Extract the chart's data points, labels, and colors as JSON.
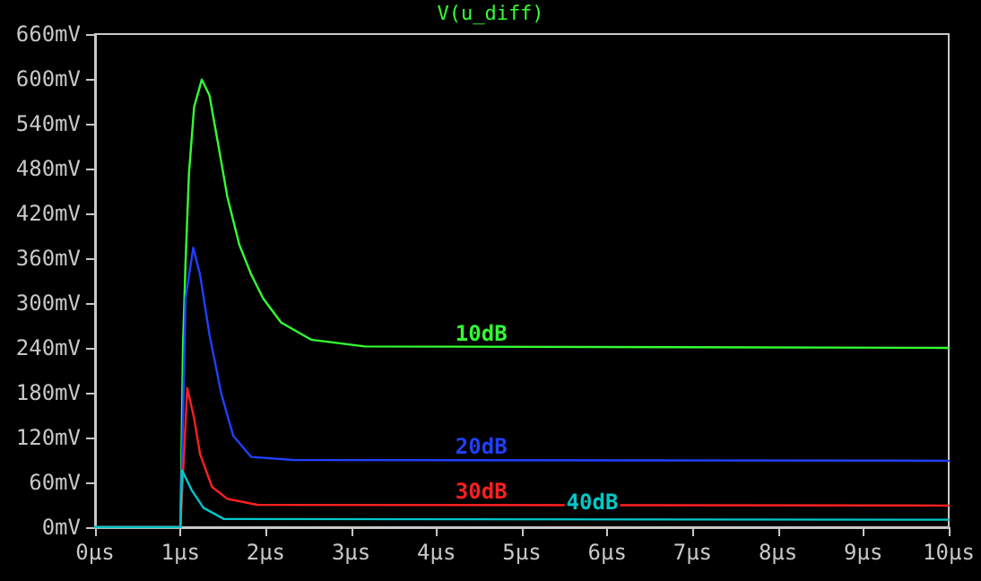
{
  "chart_data": {
    "type": "line",
    "title": "V(u_diff)",
    "marker": "none",
    "grid": false,
    "legend": false,
    "xlim": [
      0,
      10
    ],
    "xticks": [
      {
        "value": 0,
        "label": "0µs"
      },
      {
        "value": 1,
        "label": "1µs"
      },
      {
        "value": 2,
        "label": "2µs"
      },
      {
        "value": 3,
        "label": "3µs"
      },
      {
        "value": 4,
        "label": "4µs"
      },
      {
        "value": 5,
        "label": "5µs"
      },
      {
        "value": 6,
        "label": "6µs"
      },
      {
        "value": 7,
        "label": "7µs"
      },
      {
        "value": 8,
        "label": "8µs"
      },
      {
        "value": 9,
        "label": "9µs"
      },
      {
        "value": 10,
        "label": "10µs"
      }
    ],
    "ylim": [
      0,
      660
    ],
    "yticks": [
      {
        "value": 0,
        "label": "0mV"
      },
      {
        "value": 60,
        "label": "60mV"
      },
      {
        "value": 120,
        "label": "120mV"
      },
      {
        "value": 180,
        "label": "180mV"
      },
      {
        "value": 240,
        "label": "240mV"
      },
      {
        "value": 300,
        "label": "300mV"
      },
      {
        "value": 360,
        "label": "360mV"
      },
      {
        "value": 420,
        "label": "420mV"
      },
      {
        "value": 480,
        "label": "480mV"
      },
      {
        "value": 540,
        "label": "540mV"
      },
      {
        "value": 600,
        "label": "600mV"
      },
      {
        "value": 660,
        "label": "660mV"
      }
    ],
    "series": [
      {
        "name": "10dB",
        "color": "#33ff33",
        "x": [
          0,
          1,
          1.03,
          1.06,
          1.1,
          1.16,
          1.25,
          1.34,
          1.44,
          1.55,
          1.69,
          1.83,
          1.97,
          2.18,
          2.53,
          3.16,
          10
        ],
        "values": [
          0,
          0,
          242,
          354,
          473,
          562,
          599,
          578,
          514,
          442,
          378,
          338,
          306,
          274,
          251,
          242,
          240
        ]
      },
      {
        "name": "20dB",
        "color": "#2040ff",
        "x": [
          0,
          1,
          1.03,
          1.06,
          1.15,
          1.23,
          1.34,
          1.48,
          1.62,
          1.83,
          2.32,
          10
        ],
        "values": [
          0,
          0,
          146,
          306,
          374,
          338,
          258,
          178,
          122,
          94,
          90,
          89
        ]
      },
      {
        "name": "30dB",
        "color": "#ff2020",
        "x": [
          0,
          1,
          1.08,
          1.16,
          1.23,
          1.37,
          1.55,
          1.9,
          10
        ],
        "values": [
          0,
          0,
          186,
          146,
          98,
          54,
          38,
          30,
          29
        ]
      },
      {
        "name": "40dB",
        "color": "#00c8c8",
        "x": [
          0,
          1,
          1.02,
          1.13,
          1.27,
          1.51,
          10
        ],
        "values": [
          0,
          0,
          76,
          50,
          26,
          11,
          10
        ]
      }
    ]
  }
}
